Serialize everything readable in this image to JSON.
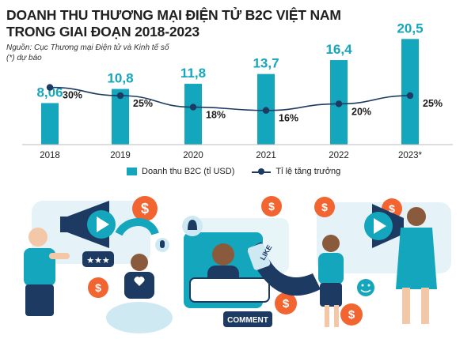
{
  "title_line1": "DOANH THU THƯƠNG MẠI ĐIỆN TỬ B2C VIỆT NAM",
  "title_line2": "TRONG GIAI ĐOẠN 2018-2023",
  "source_line1": "Nguồn: Cục Thương mại Điện tử và Kinh tế số",
  "source_line2": "(*) dự báo",
  "chart_data": {
    "type": "bar",
    "title": "DOANH THU THƯƠNG MẠI ĐIỆN TỬ B2C VIỆT NAM TRONG GIAI ĐOẠN 2018-2023",
    "categories": [
      "2018",
      "2019",
      "2020",
      "2021",
      "2022",
      "2023*"
    ],
    "series": [
      {
        "name": "Doanh thu B2C (tỉ USD)",
        "type": "bar",
        "values": [
          8.06,
          10.8,
          11.8,
          13.7,
          16.4,
          20.5
        ],
        "labels": [
          "8,06",
          "10,8",
          "11,8",
          "13,7",
          "16,4",
          "20,5"
        ],
        "color": "#14a6bc"
      },
      {
        "name": "Tỉ lệ tăng trưởng",
        "type": "line",
        "values": [
          30,
          25,
          18,
          16,
          20,
          25
        ],
        "labels": [
          "30%",
          "25%",
          "18%",
          "16%",
          "20%",
          "25%"
        ],
        "unit": "%",
        "color": "#1d3a63"
      }
    ],
    "bar_ylim": [
      0,
      23
    ],
    "line_ylim": [
      0,
      50
    ],
    "grid": false,
    "legend_position": "bottom"
  },
  "illustration": {
    "description_icons": [
      "megaphone-icon",
      "play-icon",
      "dollar-icon",
      "like-icon",
      "comment-icon",
      "heart-icon",
      "bell-icon",
      "smiley-icon",
      "magnet-icon",
      "stars-icon"
    ],
    "like_text": "LIKE",
    "comment_text": "COMMENT",
    "colors": {
      "teal": "#14a6bc",
      "navy": "#1d3a63",
      "orange": "#f26531",
      "light_blue": "#cfe9f2"
    }
  }
}
